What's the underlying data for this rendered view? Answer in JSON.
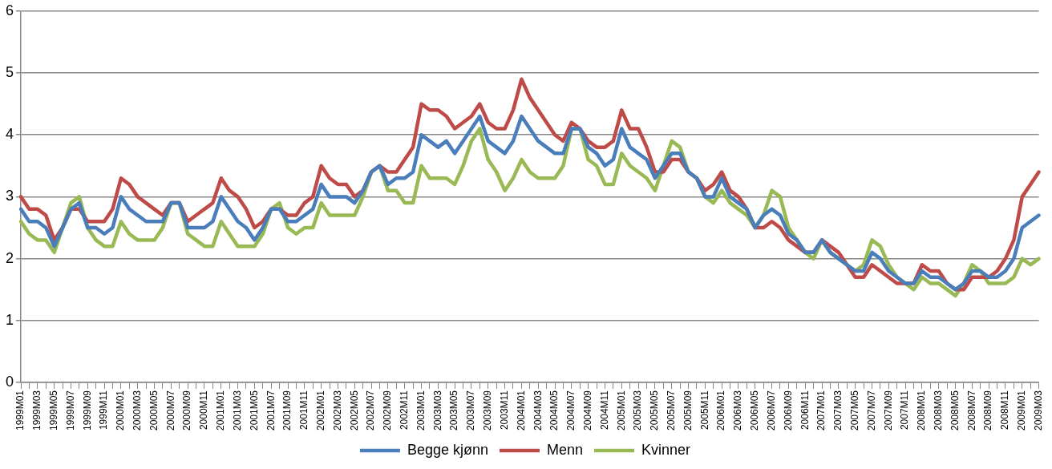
{
  "chart_data": {
    "type": "line",
    "categories": [
      "1999M01",
      null,
      "1999M03",
      null,
      "1999M05",
      null,
      "1999M07",
      null,
      "1999M09",
      null,
      "1999M11",
      null,
      "2000M01",
      null,
      "2000M03",
      null,
      "2000M05",
      null,
      "2000M07",
      null,
      "2000M09",
      null,
      "2000M11",
      null,
      "2001M01",
      null,
      "2001M03",
      null,
      "2001M05",
      null,
      "2001M07",
      null,
      "2001M09",
      null,
      "2001M11",
      null,
      "2002M01",
      null,
      "2002M03",
      null,
      "2002M05",
      null,
      "2002M07",
      null,
      "2002M09",
      null,
      "2002M11",
      null,
      "2003M01",
      null,
      "2003M03",
      null,
      "2003M05",
      null,
      "2003M07",
      null,
      "2003M09",
      null,
      "2003M11",
      null,
      "2004M01",
      null,
      "2004M03",
      null,
      "2004M05",
      null,
      "2004M07",
      null,
      "2004M09",
      null,
      "2004M11",
      null,
      "2005M01",
      null,
      "2005M03",
      null,
      "2005M05",
      null,
      "2005M07",
      null,
      "2005M09",
      null,
      "2005M11",
      null,
      "2006M01",
      null,
      "2006M03",
      null,
      "2006M05",
      null,
      "2006M07",
      null,
      "2006M09",
      null,
      "2006M11",
      null,
      "2007M01",
      null,
      "2007M03",
      null,
      "2007M05",
      null,
      "2007M07",
      null,
      "2007M09",
      null,
      "2007M11",
      null,
      "2008M01",
      null,
      "2008M03",
      null,
      "2008M05",
      null,
      "2008M07",
      null,
      "2008M09",
      null,
      "2008M11",
      null,
      "2009M01",
      null,
      "2009M03"
    ],
    "series": [
      {
        "name": "Begge kjønn",
        "color": "#4a7ebb",
        "values": [
          2.8,
          2.6,
          2.6,
          2.5,
          2.2,
          2.5,
          2.8,
          2.9,
          2.5,
          2.5,
          2.4,
          2.5,
          3.0,
          2.8,
          2.7,
          2.6,
          2.6,
          2.6,
          2.9,
          2.9,
          2.5,
          2.5,
          2.5,
          2.6,
          3.0,
          2.8,
          2.6,
          2.5,
          2.3,
          2.5,
          2.8,
          2.8,
          2.6,
          2.6,
          2.7,
          2.8,
          3.2,
          3.0,
          3.0,
          3.0,
          2.9,
          3.1,
          3.4,
          3.5,
          3.2,
          3.3,
          3.3,
          3.4,
          4.0,
          3.9,
          3.8,
          3.9,
          3.7,
          3.9,
          4.1,
          4.3,
          3.9,
          3.8,
          3.7,
          3.9,
          4.3,
          4.1,
          3.9,
          3.8,
          3.7,
          3.7,
          4.1,
          4.1,
          3.8,
          3.7,
          3.5,
          3.6,
          4.1,
          3.8,
          3.7,
          3.6,
          3.3,
          3.5,
          3.7,
          3.7,
          3.4,
          3.3,
          3.0,
          3.0,
          3.3,
          3.0,
          2.9,
          2.8,
          2.5,
          2.7,
          2.8,
          2.7,
          2.4,
          2.3,
          2.1,
          2.1,
          2.3,
          2.1,
          2.0,
          1.9,
          1.8,
          1.8,
          2.1,
          2.0,
          1.8,
          1.7,
          1.6,
          1.6,
          1.8,
          1.7,
          1.7,
          1.6,
          1.5,
          1.6,
          1.8,
          1.8,
          1.7,
          1.7,
          1.8,
          2.0,
          2.5,
          2.6,
          2.7
        ]
      },
      {
        "name": "Menn",
        "color": "#be4b48",
        "values": [
          3.0,
          2.8,
          2.8,
          2.7,
          2.3,
          2.5,
          2.8,
          2.8,
          2.6,
          2.6,
          2.6,
          2.8,
          3.3,
          3.2,
          3.0,
          2.9,
          2.8,
          2.7,
          2.9,
          2.9,
          2.6,
          2.7,
          2.8,
          2.9,
          3.3,
          3.1,
          3.0,
          2.8,
          2.5,
          2.6,
          2.8,
          2.8,
          2.7,
          2.7,
          2.9,
          3.0,
          3.5,
          3.3,
          3.2,
          3.2,
          3.0,
          3.1,
          3.4,
          3.5,
          3.4,
          3.4,
          3.6,
          3.8,
          4.5,
          4.4,
          4.4,
          4.3,
          4.1,
          4.2,
          4.3,
          4.5,
          4.2,
          4.1,
          4.1,
          4.4,
          4.9,
          4.6,
          4.4,
          4.2,
          4.0,
          3.9,
          4.2,
          4.1,
          3.9,
          3.8,
          3.8,
          3.9,
          4.4,
          4.1,
          4.1,
          3.8,
          3.4,
          3.4,
          3.6,
          3.6,
          3.4,
          3.3,
          3.1,
          3.2,
          3.4,
          3.1,
          3.0,
          2.8,
          2.5,
          2.5,
          2.6,
          2.5,
          2.3,
          2.2,
          2.1,
          2.1,
          2.3,
          2.2,
          2.1,
          1.9,
          1.7,
          1.7,
          1.9,
          1.8,
          1.7,
          1.6,
          1.6,
          1.6,
          1.9,
          1.8,
          1.8,
          1.6,
          1.5,
          1.5,
          1.7,
          1.7,
          1.7,
          1.8,
          2.0,
          2.3,
          3.0,
          3.2,
          3.4
        ]
      },
      {
        "name": "Kvinner",
        "color": "#98b954",
        "values": [
          2.6,
          2.4,
          2.3,
          2.3,
          2.1,
          2.5,
          2.9,
          3.0,
          2.5,
          2.3,
          2.2,
          2.2,
          2.6,
          2.4,
          2.3,
          2.3,
          2.3,
          2.5,
          2.9,
          2.9,
          2.4,
          2.3,
          2.2,
          2.2,
          2.6,
          2.4,
          2.2,
          2.2,
          2.2,
          2.4,
          2.8,
          2.9,
          2.5,
          2.4,
          2.5,
          2.5,
          2.9,
          2.7,
          2.7,
          2.7,
          2.7,
          3.0,
          3.4,
          3.5,
          3.1,
          3.1,
          2.9,
          2.9,
          3.5,
          3.3,
          3.3,
          3.3,
          3.2,
          3.5,
          3.9,
          4.1,
          3.6,
          3.4,
          3.1,
          3.3,
          3.6,
          3.4,
          3.3,
          3.3,
          3.3,
          3.5,
          4.1,
          4.1,
          3.6,
          3.5,
          3.2,
          3.2,
          3.7,
          3.5,
          3.4,
          3.3,
          3.1,
          3.5,
          3.9,
          3.8,
          3.4,
          3.3,
          3.0,
          2.9,
          3.1,
          2.9,
          2.8,
          2.7,
          2.5,
          2.7,
          3.1,
          3.0,
          2.5,
          2.3,
          2.1,
          2.0,
          2.3,
          2.1,
          2.0,
          1.9,
          1.8,
          1.9,
          2.3,
          2.2,
          1.9,
          1.7,
          1.6,
          1.5,
          1.7,
          1.6,
          1.6,
          1.5,
          1.4,
          1.6,
          1.9,
          1.8,
          1.6,
          1.6,
          1.6,
          1.7,
          2.0,
          1.9,
          2.0
        ]
      }
    ],
    "ylim": [
      0,
      6
    ],
    "yticks": [
      0,
      1,
      2,
      3,
      4,
      5,
      6
    ],
    "grid": "y",
    "legend": "bottom",
    "line_style": "solid"
  }
}
